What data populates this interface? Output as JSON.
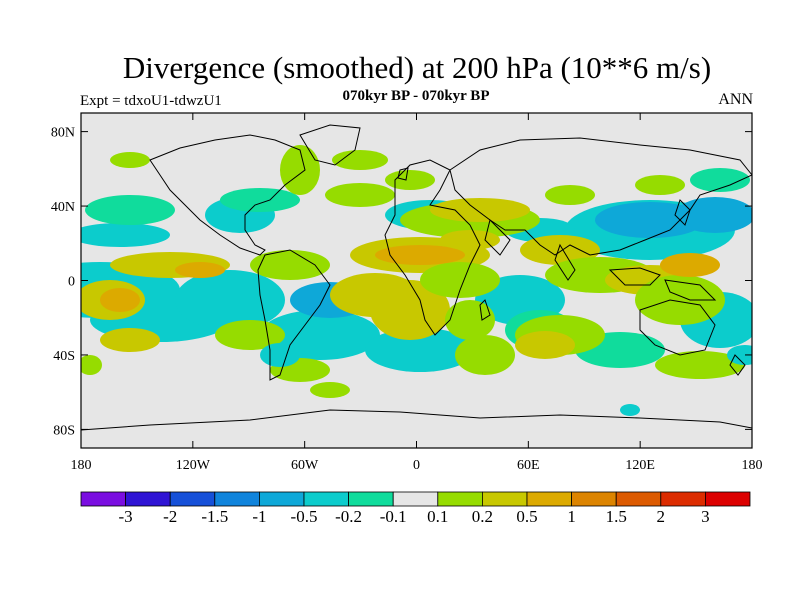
{
  "title": "Divergence (smoothed) at 200 hPa (10**6 m/s)",
  "subtitle_left": "Expt = tdxoU1-tdwzU1",
  "subtitle_center": "070kyr BP - 070kyr BP",
  "subtitle_right": "ANN",
  "map": {
    "lon_range": [
      -180,
      180
    ],
    "lat_range": [
      -90,
      90
    ],
    "lat_ticks": [
      {
        "lat": 80,
        "label": "80N"
      },
      {
        "lat": 40,
        "label": "40N"
      },
      {
        "lat": 0,
        "label": "0"
      },
      {
        "lat": -40,
        "label": "40S"
      },
      {
        "lat": -80,
        "label": "80S"
      }
    ],
    "lon_ticks": [
      {
        "lon": -180,
        "label": "180"
      },
      {
        "lon": -120,
        "label": "120W"
      },
      {
        "lon": -60,
        "label": "60W"
      },
      {
        "lon": 0,
        "label": "0"
      },
      {
        "lon": 60,
        "label": "60E"
      },
      {
        "lon": 120,
        "label": "120E"
      },
      {
        "lon": 180,
        "label": "180"
      }
    ],
    "background_color": "#e6e6e6",
    "coastline_color": "#000000"
  },
  "colorbar": {
    "colors": [
      "#7a0ee0",
      "#2f14d4",
      "#1650d8",
      "#1084dc",
      "#0ea8d8",
      "#0ccccc",
      "#10dc9c",
      "#e6e6e6",
      "#96dc00",
      "#c8c800",
      "#dcaa00",
      "#dc8400",
      "#dc5a00",
      "#dc2c00",
      "#dc0000"
    ],
    "labels": [
      "-3",
      "-2",
      "-1.5",
      "-1",
      "-0.5",
      "-0.2",
      "-0.1",
      "0.1",
      "0.2",
      "0.5",
      "1",
      "1.5",
      "2",
      "3"
    ]
  },
  "field_colors": {
    "neg_weak": "#10dc9c",
    "neg_mod": "#0ccccc",
    "neg_strong": "#0ea8d8",
    "pos_weak": "#96dc00",
    "pos_mod": "#c8c800",
    "pos_strong": "#dcaa00"
  }
}
